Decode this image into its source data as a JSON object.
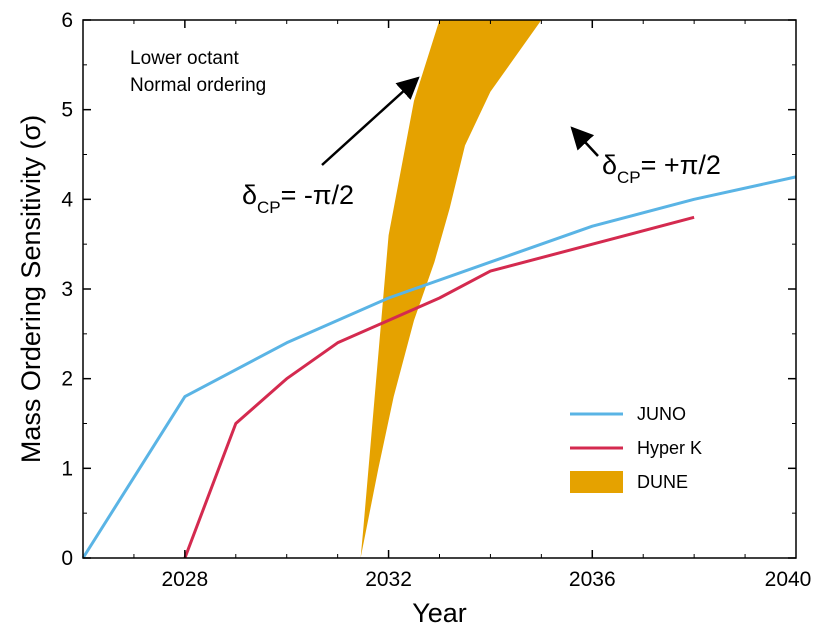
{
  "chart_data": {
    "type": "line",
    "xlabel": "Year",
    "ylabel": "Mass Ordering Sensitivity (σ)",
    "xlim": [
      2026,
      2040
    ],
    "ylim": [
      0,
      6
    ],
    "xticks": [
      2028,
      2032,
      2036,
      2040
    ],
    "yticks": [
      0,
      1,
      2,
      3,
      4,
      5,
      6
    ],
    "xtick_labels": [
      "2028",
      "2032",
      "2036",
      "2040"
    ],
    "ytick_labels": [
      "0",
      "1",
      "2",
      "3",
      "4",
      "5",
      "6"
    ],
    "grid": false,
    "legend_position": "bottom-right",
    "notes": [
      "Lower octant",
      "Normal ordering"
    ],
    "series": [
      {
        "name": "JUNO",
        "type": "line",
        "color": "#5ab4e5",
        "x": [
          2026,
          2028,
          2030,
          2032,
          2034,
          2036,
          2038,
          2040
        ],
        "y": [
          0.0,
          1.8,
          2.4,
          2.9,
          3.3,
          3.7,
          4.0,
          4.25
        ]
      },
      {
        "name": "Hyper K",
        "type": "line",
        "color": "#d42a4f",
        "x": [
          2028,
          2029,
          2030,
          2031,
          2032,
          2033,
          2034,
          2036,
          2038
        ],
        "y": [
          0.0,
          1.5,
          2.0,
          2.4,
          2.65,
          2.9,
          3.2,
          3.5,
          3.8
        ]
      },
      {
        "name": "DUNE",
        "type": "band",
        "color": "#e5a200",
        "lower": {
          "label_prefix": "δ",
          "label_sub": "CP",
          "label_suffix": "= -π/2",
          "x": [
            2031.45,
            2031.8,
            2032.1,
            2032.5,
            2032.9,
            2033.2,
            2033.5,
            2034.0,
            2034.5,
            2035.0,
            2035.5,
            2036.0,
            2036.5,
            2037.0
          ],
          "y": [
            0.0,
            1.0,
            1.8,
            2.65,
            3.3,
            3.9,
            4.6,
            5.2,
            5.6,
            6.0,
            6.0,
            6.0,
            6.0,
            6.0
          ]
        },
        "upper": {
          "label_prefix": "δ",
          "label_sub": "CP",
          "label_suffix": "= +π/2",
          "x": [
            2031.45,
            2031.5,
            2032.0,
            2032.5,
            2033.0,
            2033.5,
            2034.0,
            2034.5,
            2035.0,
            2035.5,
            2036.0,
            2036.5,
            2037.0
          ],
          "y": [
            0.0,
            0.3,
            3.6,
            5.1,
            6.0,
            6.0,
            6.0,
            6.0,
            6.0,
            6.0,
            6.0,
            6.0,
            6.0
          ]
        }
      }
    ]
  }
}
